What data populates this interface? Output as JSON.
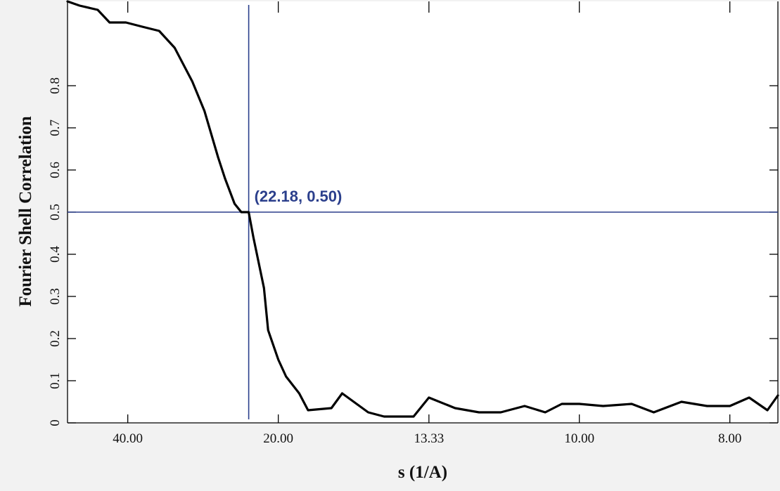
{
  "chart_data": {
    "type": "line",
    "xlabel": "s (1/A)",
    "ylabel": "Fourier Shell Correlation",
    "x_scale": "reciprocal",
    "xlim": [
      66.7,
      7.52
    ],
    "ylim": [
      0,
      1.0
    ],
    "x_ticks": [
      "40.00",
      "20.00",
      "13.33",
      "10.00",
      "8.00"
    ],
    "x_tick_values": [
      40.0,
      20.0,
      13.33,
      10.0,
      8.0
    ],
    "y_ticks": [
      "0",
      "0.1",
      "0.2",
      "0.3",
      "0.4",
      "0.5",
      "0.6",
      "0.7",
      "0.8"
    ],
    "y_tick_values": [
      0,
      0.1,
      0.2,
      0.3,
      0.4,
      0.5,
      0.6,
      0.7,
      0.8
    ],
    "grid": false,
    "series": [
      {
        "x": [
          66.7,
          58.8,
          50.0,
          45.5,
          40.5,
          36.5,
          33.1,
          30.5,
          28.0,
          26.5,
          25.0,
          24.3,
          23.4,
          22.8,
          22.18,
          21.8,
          21.0,
          20.7,
          20.0,
          19.5,
          18.7,
          18.2,
          17.0,
          16.5,
          15.4,
          14.8,
          13.8,
          13.33,
          12.6,
          12.0,
          11.5,
          11.0,
          10.6,
          10.3,
          10.0,
          9.62,
          9.2,
          8.9,
          8.55,
          8.25,
          8.0,
          7.8,
          7.62,
          7.52
        ],
        "y": [
          1.0,
          0.99,
          0.98,
          0.95,
          0.95,
          0.94,
          0.93,
          0.89,
          0.81,
          0.74,
          0.63,
          0.58,
          0.52,
          0.5,
          0.5,
          0.44,
          0.32,
          0.22,
          0.15,
          0.11,
          0.07,
          0.03,
          0.035,
          0.07,
          0.025,
          0.015,
          0.015,
          0.06,
          0.035,
          0.025,
          0.025,
          0.04,
          0.025,
          0.045,
          0.045,
          0.04,
          0.045,
          0.025,
          0.05,
          0.04,
          0.04,
          0.06,
          0.03,
          0.065
        ]
      }
    ],
    "annotation": {
      "text": "(22.18, 0.50)",
      "x": 22.18,
      "y": 0.5,
      "color": "#2b3f8c"
    },
    "colors": {
      "line": "#000000",
      "crosshair": "#2b3f8c",
      "plot_background": "#ffffff",
      "page_background": "#f2f2f2"
    }
  }
}
